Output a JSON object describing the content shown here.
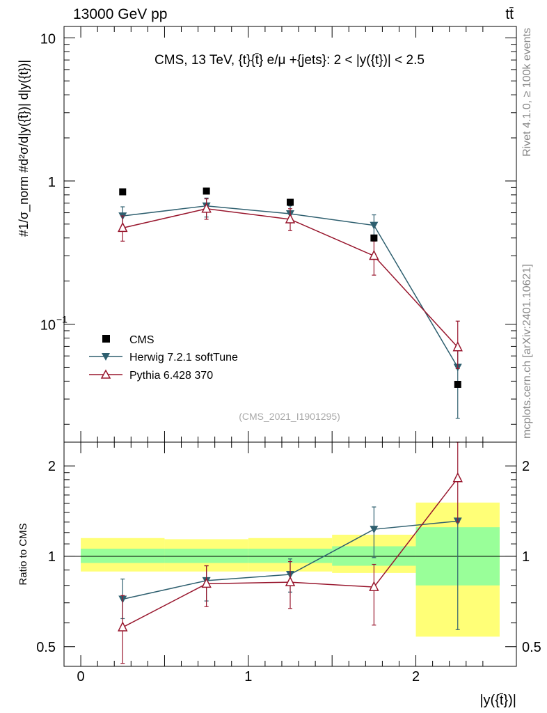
{
  "header": {
    "left": "13000 GeV pp",
    "right": "tt̄"
  },
  "side": {
    "rivet": "Rivet 4.1.0, ≥ 100k events",
    "mcplots": "mcplots.cern.ch [arXiv:2401.10621]"
  },
  "chart_data": {
    "type": "scatter",
    "title": "CMS, 13 TeV, {t}{t̄} e/μ +{jets}: 2 < |y({t})| < 2.5",
    "analysis_id": "(CMS_2021_I1901295)",
    "xlabel": "|y({t̄})|",
    "ylabel_main": "#1/σ_norm #d²σ/d|y({t̄})| d|y({t})|",
    "ylabel_ratio": "Ratio to CMS",
    "xlim": [
      -0.1,
      2.6
    ],
    "ylim_main": [
      0.015,
      12
    ],
    "ylim_ratio": [
      0.43,
      2.4
    ],
    "main_ticks": [
      {
        "value": 0.1,
        "base": "10",
        "exp": "−1"
      },
      {
        "value": 1,
        "label": "1"
      },
      {
        "value": 10,
        "label": "10"
      }
    ],
    "ratio_ticks": [
      "0.5",
      "1",
      "2"
    ],
    "x_ticks": [
      "0",
      "1",
      "2"
    ],
    "bins": [
      {
        "lo": 0.0,
        "hi": 0.5,
        "x": 0.25
      },
      {
        "lo": 0.5,
        "hi": 1.0,
        "x": 0.75
      },
      {
        "lo": 1.0,
        "hi": 1.5,
        "x": 1.25
      },
      {
        "lo": 1.5,
        "hi": 2.0,
        "x": 1.75
      },
      {
        "lo": 2.0,
        "hi": 2.5,
        "x": 2.25
      }
    ],
    "legend": {
      "cms": "CMS",
      "herwig": "Herwig 7.2.1 softTune",
      "pythia": "Pythia 6.428 370"
    },
    "colors": {
      "cms": "#000000",
      "herwig": "#2e5f6f",
      "pythia": "#98162d",
      "band_inner": "#99ff99",
      "band_outer": "#ffff77"
    },
    "data": {
      "x": [
        0.25,
        0.75,
        1.25,
        1.75,
        2.25
      ],
      "y": [
        0.84,
        0.85,
        0.71,
        0.4,
        0.038
      ]
    },
    "herwig": {
      "x": [
        0.25,
        0.75,
        1.25,
        1.75,
        2.25
      ],
      "y": [
        0.57,
        0.67,
        0.59,
        0.49,
        0.05
      ],
      "err_lo": [
        0.47,
        0.56,
        0.51,
        0.41,
        0.022
      ],
      "err_hi": [
        0.66,
        0.76,
        0.67,
        0.58,
        0.066
      ],
      "ratio": [
        0.72,
        0.83,
        0.87,
        1.23,
        1.31
      ],
      "ratio_lo": [
        0.62,
        0.71,
        0.76,
        0.99,
        0.57
      ],
      "ratio_hi": [
        0.84,
        0.93,
        0.98,
        1.46,
        1.33
      ]
    },
    "pythia": {
      "x": [
        0.25,
        0.75,
        1.25,
        1.75,
        2.25
      ],
      "y": [
        0.47,
        0.64,
        0.54,
        0.3,
        0.069
      ],
      "err_lo": [
        0.38,
        0.54,
        0.45,
        0.22,
        0.049
      ],
      "err_hi": [
        0.57,
        0.75,
        0.64,
        0.38,
        0.105
      ],
      "ratio": [
        0.58,
        0.81,
        0.82,
        0.79,
        1.82
      ],
      "ratio_lo": [
        0.44,
        0.68,
        0.67,
        0.59,
        1.3
      ],
      "ratio_hi": [
        0.74,
        0.93,
        0.96,
        0.94,
        2.4
      ]
    },
    "band": {
      "inner_lo": [
        0.95,
        0.95,
        0.95,
        0.93,
        0.8
      ],
      "inner_hi": [
        1.06,
        1.06,
        1.06,
        1.08,
        1.25
      ],
      "outer_lo": [
        0.89,
        0.89,
        0.89,
        0.88,
        0.54
      ],
      "outer_hi": [
        1.15,
        1.14,
        1.15,
        1.18,
        1.51
      ]
    }
  }
}
